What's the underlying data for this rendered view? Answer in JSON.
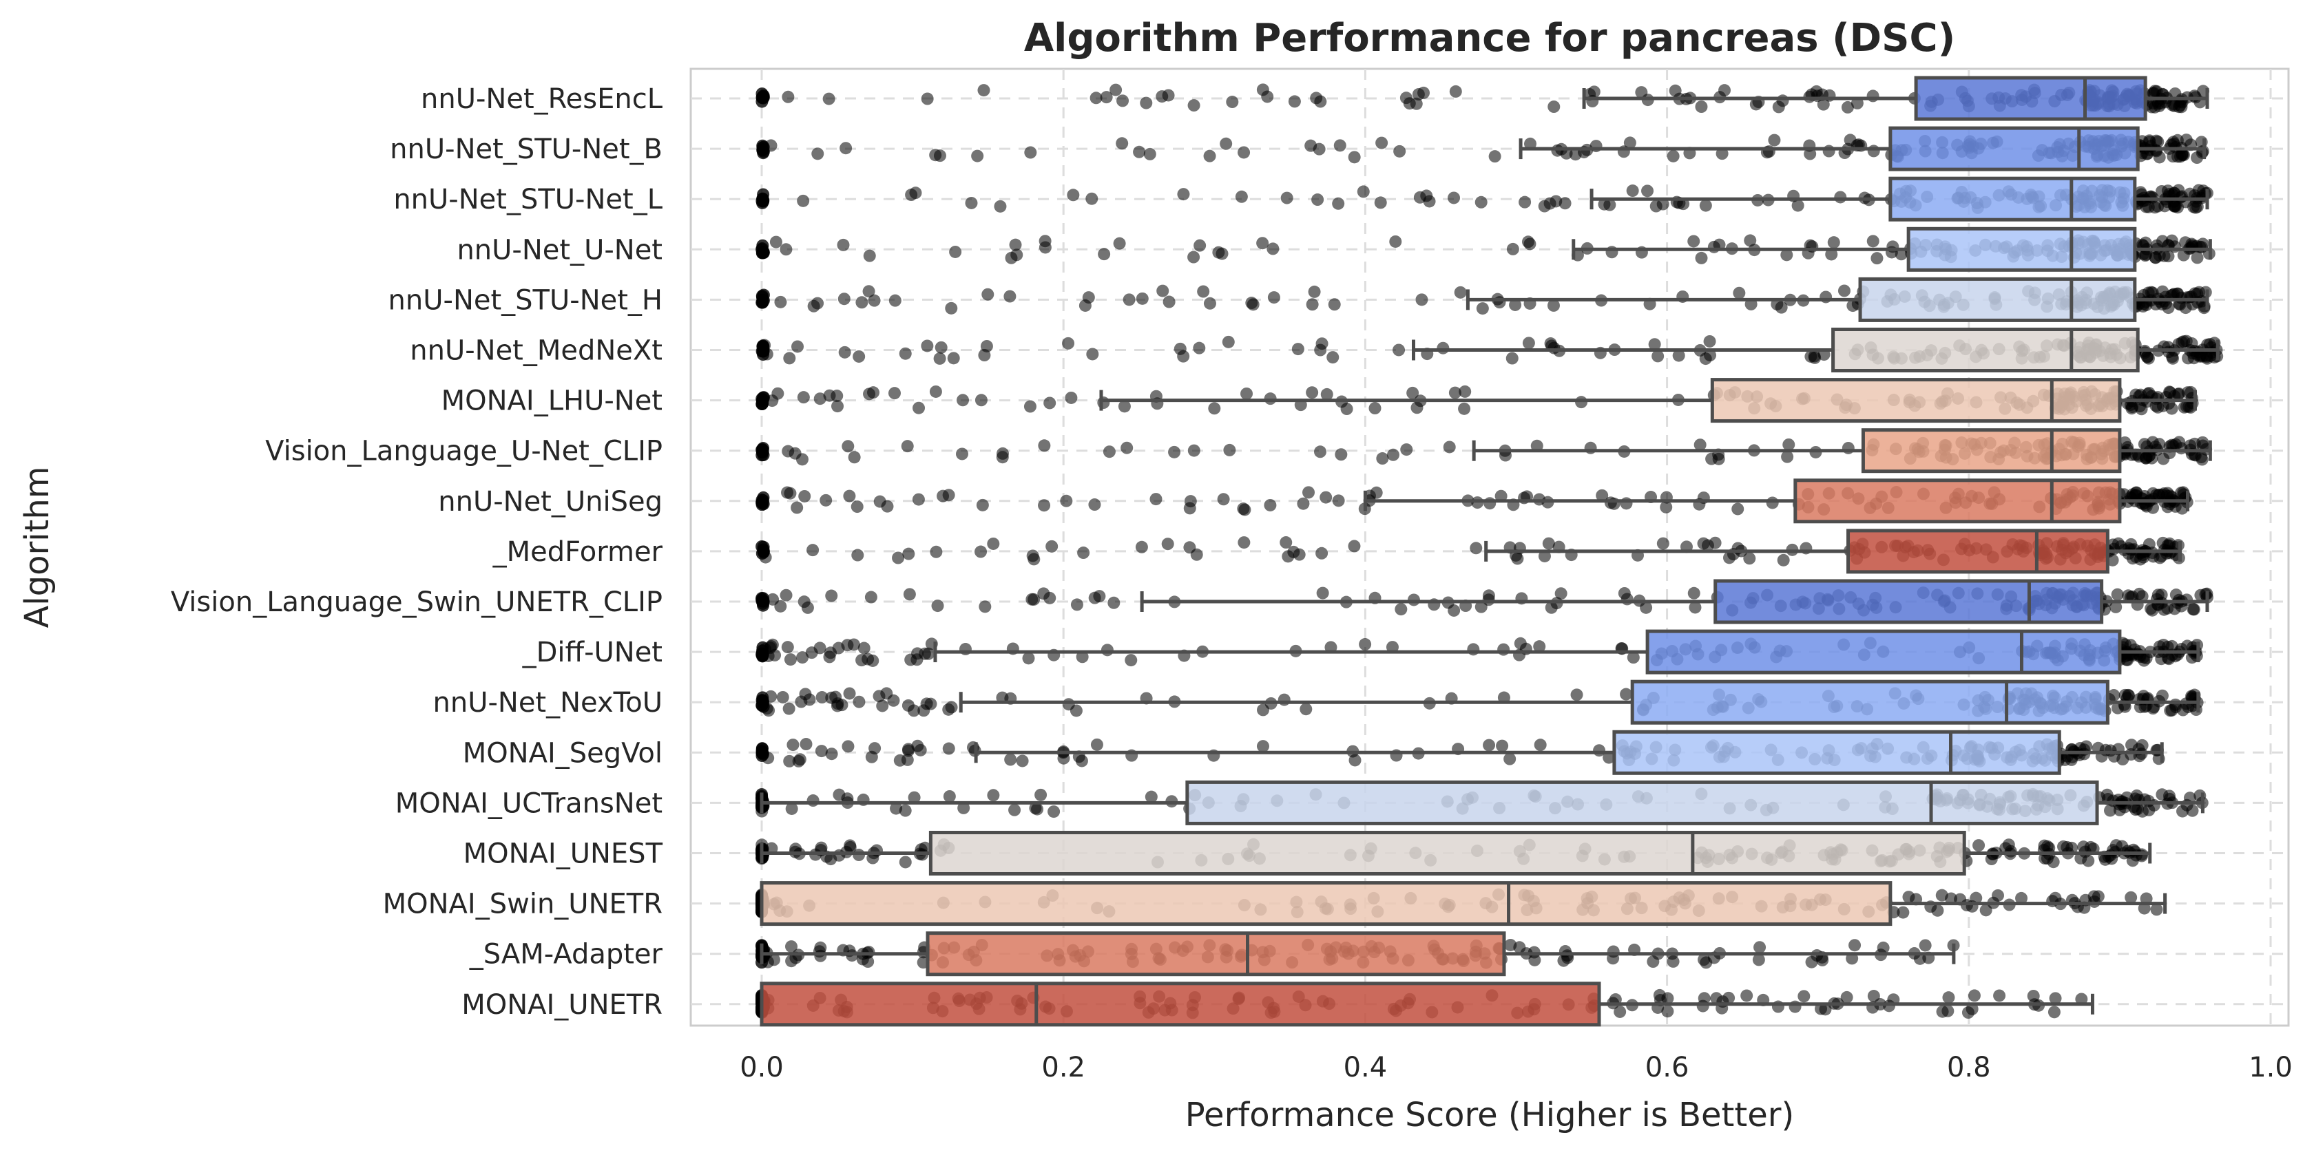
{
  "chart_data": {
    "type": "box",
    "title": "Algorithm Performance for pancreas (DSC)",
    "xlabel": "Performance Score (Higher is Better)",
    "ylabel": "Algorithm",
    "xlim": [
      -0.05,
      1.0
    ],
    "xticks": [
      "0.0",
      "0.2",
      "0.4",
      "0.6",
      "0.8",
      "1.0"
    ],
    "grid": true,
    "categories": [
      "nnU-Net_ResEncL",
      "nnU-Net_STU-Net_B",
      "nnU-Net_STU-Net_L",
      "nnU-Net_U-Net",
      "nnU-Net_STU-Net_H",
      "nnU-Net_MedNeXt",
      "MONAI_LHU-Net",
      "Vision_Language_U-Net_CLIP",
      "nnU-Net_UniSeg",
      "_MedFormer",
      "Vision_Language_Swin_UNETR_CLIP",
      "_Diff-UNet",
      "nnU-Net_NexToU",
      "MONAI_SegVol",
      "MONAI_UCTransNet",
      "MONAI_UNEST",
      "MONAI_Swin_UNETR",
      "_SAM-Adapter",
      "MONAI_UNETR"
    ],
    "boxes": [
      {
        "name": "nnU-Net_ResEncL",
        "whisker_low": 0.545,
        "q1": 0.765,
        "median": 0.877,
        "q3": 0.917,
        "whisker_high": 0.958,
        "color": "#5a78d6"
      },
      {
        "name": "nnU-Net_STU-Net_B",
        "whisker_low": 0.503,
        "q1": 0.748,
        "median": 0.873,
        "q3": 0.912,
        "whisker_high": 0.956,
        "color": "#7091e8"
      },
      {
        "name": "nnU-Net_STU-Net_L",
        "whisker_low": 0.55,
        "q1": 0.748,
        "median": 0.868,
        "q3": 0.91,
        "whisker_high": 0.958,
        "color": "#8cabf3"
      },
      {
        "name": "nnU-Net_U-Net",
        "whisker_low": 0.538,
        "q1": 0.76,
        "median": 0.868,
        "q3": 0.91,
        "whisker_high": 0.96,
        "color": "#aac4f8"
      },
      {
        "name": "nnU-Net_STU-Net_H",
        "whisker_low": 0.468,
        "q1": 0.728,
        "median": 0.868,
        "q3": 0.91,
        "whisker_high": 0.958,
        "color": "#c8d5ec"
      },
      {
        "name": "nnU-Net_MedNeXt",
        "whisker_low": 0.432,
        "q1": 0.71,
        "median": 0.868,
        "q3": 0.912,
        "whisker_high": 0.965,
        "color": "#ddd6d1"
      },
      {
        "name": "MONAI_LHU-Net",
        "whisker_low": 0.225,
        "q1": 0.63,
        "median": 0.855,
        "q3": 0.9,
        "whisker_high": 0.95,
        "color": "#ecc8b4"
      },
      {
        "name": "Vision_Language_U-Net_CLIP",
        "whisker_low": 0.472,
        "q1": 0.73,
        "median": 0.855,
        "q3": 0.9,
        "whisker_high": 0.96,
        "color": "#e9a488"
      },
      {
        "name": "nnU-Net_UniSeg",
        "whisker_low": 0.4,
        "q1": 0.685,
        "median": 0.855,
        "q3": 0.9,
        "whisker_high": 0.945,
        "color": "#d97a61"
      },
      {
        "name": "_MedFormer",
        "whisker_low": 0.48,
        "q1": 0.72,
        "median": 0.845,
        "q3": 0.892,
        "whisker_high": 0.94,
        "color": "#c2503f"
      },
      {
        "name": "Vision_Language_Swin_UNETR_CLIP",
        "whisker_low": 0.252,
        "q1": 0.632,
        "median": 0.84,
        "q3": 0.888,
        "whisker_high": 0.958,
        "color": "#5a78d6"
      },
      {
        "name": "_Diff-UNet",
        "whisker_low": 0.115,
        "q1": 0.587,
        "median": 0.835,
        "q3": 0.9,
        "whisker_high": 0.952,
        "color": "#7091e8"
      },
      {
        "name": "nnU-Net_NexToU",
        "whisker_low": 0.132,
        "q1": 0.577,
        "median": 0.825,
        "q3": 0.892,
        "whisker_high": 0.952,
        "color": "#8cabf3"
      },
      {
        "name": "MONAI_SegVol",
        "whisker_low": 0.142,
        "q1": 0.565,
        "median": 0.788,
        "q3": 0.86,
        "whisker_high": 0.928,
        "color": "#aac4f8"
      },
      {
        "name": "MONAI_UCTransNet",
        "whisker_low": 0.0,
        "q1": 0.282,
        "median": 0.775,
        "q3": 0.885,
        "whisker_high": 0.955,
        "color": "#c8d5ec"
      },
      {
        "name": "MONAI_UNEST",
        "whisker_low": 0.0,
        "q1": 0.112,
        "median": 0.617,
        "q3": 0.797,
        "whisker_high": 0.92,
        "color": "#ddd6d1"
      },
      {
        "name": "MONAI_Swin_UNETR",
        "whisker_low": 0.0,
        "q1": 0.0,
        "median": 0.495,
        "q3": 0.748,
        "whisker_high": 0.93,
        "color": "#ecc8b4"
      },
      {
        "name": "_SAM-Adapter",
        "whisker_low": 0.0,
        "q1": 0.11,
        "median": 0.322,
        "q3": 0.492,
        "whisker_high": 0.79,
        "color": "#d97a61"
      },
      {
        "name": "MONAI_UNETR",
        "whisker_low": 0.0,
        "q1": 0.0,
        "median": 0.182,
        "q3": 0.555,
        "whisker_high": 0.882,
        "color": "#c2503f"
      }
    ]
  }
}
